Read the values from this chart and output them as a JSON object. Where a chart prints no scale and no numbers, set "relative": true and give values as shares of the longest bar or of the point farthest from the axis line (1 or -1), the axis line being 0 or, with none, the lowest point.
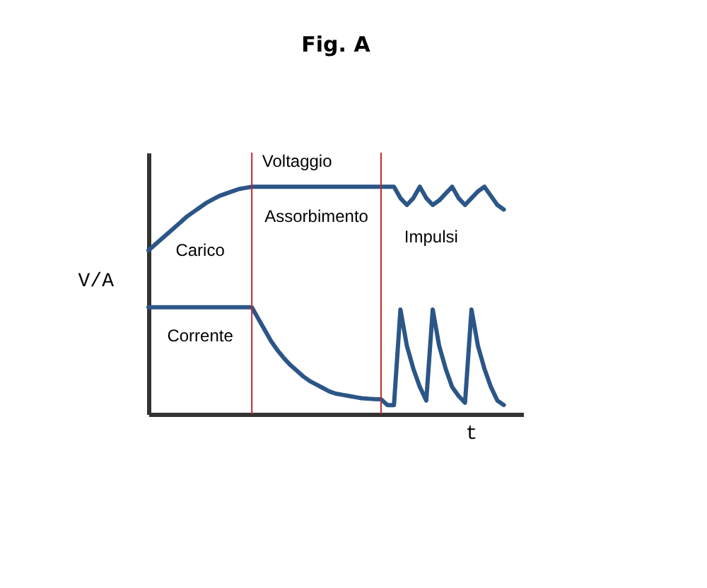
{
  "chart_data": {
    "type": "line",
    "title": "Fig. A",
    "xlabel": "t",
    "ylabel": "V/A",
    "relative": true,
    "marker": "none",
    "line_style": "solid",
    "categories": [
      null,
      null,
      null,
      null,
      null,
      null,
      null,
      null,
      null,
      null,
      null,
      null,
      null,
      null,
      null,
      null,
      null,
      null,
      null,
      null,
      null,
      null,
      null,
      null,
      null,
      null,
      null,
      null,
      null,
      null,
      null,
      null,
      null,
      null,
      null,
      null,
      null,
      null,
      null,
      null,
      null,
      null,
      null,
      null,
      null,
      null,
      null,
      null,
      null,
      null,
      null,
      null,
      null,
      null,
      null,
      null
    ],
    "series": [
      {
        "name": "Voltaggio",
        "color": "#2b5687",
        "values": [
          0.72,
          0.745,
          0.77,
          0.795,
          0.82,
          0.845,
          0.87,
          0.89,
          0.91,
          0.93,
          0.945,
          0.96,
          0.97,
          0.98,
          0.99,
          0.995,
          1,
          1,
          1,
          1,
          1,
          1,
          1,
          1,
          1,
          1,
          1,
          1,
          1,
          1,
          1,
          1,
          1,
          1,
          1,
          1,
          1,
          1,
          1,
          0.95,
          0.92,
          0.95,
          1,
          0.95,
          0.92,
          0.94,
          0.97,
          1,
          0.95,
          0.92,
          0.95,
          0.98,
          1,
          0.96,
          0.92,
          0.9
        ]
      },
      {
        "name": "Corrente",
        "color": "#2b5687",
        "values": [
          0.47,
          0.47,
          0.47,
          0.47,
          0.47,
          0.47,
          0.47,
          0.47,
          0.47,
          0.47,
          0.47,
          0.47,
          0.47,
          0.47,
          0.47,
          0.47,
          0.47,
          0.42,
          0.37,
          0.32,
          0.28,
          0.245,
          0.215,
          0.19,
          0.165,
          0.145,
          0.13,
          0.115,
          0.1,
          0.09,
          0.085,
          0.08,
          0.075,
          0.07,
          0.068,
          0.066,
          0.065,
          0.04,
          0.04,
          0.46,
          0.3,
          0.2,
          0.12,
          0.06,
          0.46,
          0.3,
          0.2,
          0.12,
          0.08,
          0.05,
          0.46,
          0.3,
          0.2,
          0.12,
          0.06,
          0.04
        ]
      }
    ],
    "annotations": [
      "Carico",
      "Assorbimento",
      "Impulsi"
    ]
  }
}
